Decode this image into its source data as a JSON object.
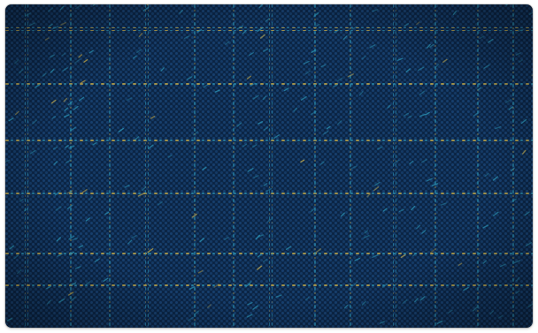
{
  "image": {
    "subject": "woven-fabric-swatch",
    "colors": {
      "base": "#0f2f57",
      "base_dark": "#081a33",
      "weave_highlight": "#1d4f86",
      "accent_teal": "#2a8fb0",
      "accent_gold": "#b9a24a",
      "background": "#ffffff"
    }
  }
}
